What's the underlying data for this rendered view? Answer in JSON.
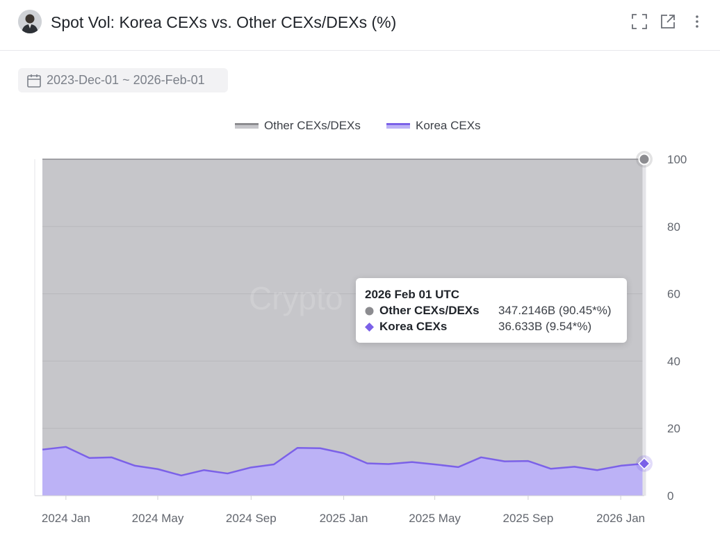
{
  "header": {
    "title": "Spot Vol: Korea CEXs vs. Other CEXs/DEXs (%)",
    "icons": [
      "avatar",
      "fullscreen-icon",
      "open-external-icon",
      "more-vertical-icon"
    ]
  },
  "date_range": {
    "label": "2023-Dec-01 ~ 2026-Feb-01",
    "icon": "calendar-icon"
  },
  "watermark": "Crypto",
  "legend": [
    {
      "name": "Other CEXs/DEXs",
      "color": "#8c8c90"
    },
    {
      "name": "Korea CEXs",
      "color": "#7b61e8"
    }
  ],
  "colors": {
    "other_fill": "#c6c6ca",
    "korea_fill": "#bcb2f6",
    "korea_line": "#7b61e8",
    "other_marker": "#8c8c90"
  },
  "tooltip": {
    "title": "2026 Feb 01 UTC",
    "rows": [
      {
        "name": "Other CEXs/DEXs",
        "value": "347.2146B (90.45*%)",
        "marker": "circle"
      },
      {
        "name": "Korea CEXs",
        "value": "36.633B (9.54*%)",
        "marker": "diamond"
      }
    ]
  },
  "chart_data": {
    "type": "area",
    "stacked": true,
    "percent": true,
    "x": [
      "2023-12-01",
      "2024-01-01",
      "2024-02-01",
      "2024-03-01",
      "2024-04-01",
      "2024-05-01",
      "2024-06-01",
      "2024-07-01",
      "2024-08-01",
      "2024-09-01",
      "2024-10-01",
      "2024-11-01",
      "2024-12-01",
      "2025-01-01",
      "2025-02-01",
      "2025-03-01",
      "2025-04-01",
      "2025-05-01",
      "2025-06-01",
      "2025-07-01",
      "2025-08-01",
      "2025-09-01",
      "2025-10-01",
      "2025-11-01",
      "2025-12-01",
      "2026-01-01",
      "2026-02-01"
    ],
    "series": [
      {
        "name": "Korea CEXs",
        "values": [
          13.7,
          14.5,
          11.2,
          11.4,
          8.9,
          7.9,
          6.0,
          7.6,
          6.6,
          8.4,
          9.3,
          14.2,
          14.1,
          12.6,
          9.6,
          9.4,
          10.0,
          9.3,
          8.5,
          11.4,
          10.2,
          10.3,
          8.0,
          8.6,
          7.6,
          8.9,
          9.54
        ]
      },
      {
        "name": "Other CEXs/DEXs",
        "values": [
          86.3,
          85.5,
          88.8,
          88.6,
          91.1,
          92.1,
          94.0,
          92.4,
          93.4,
          91.6,
          90.7,
          85.8,
          85.9,
          87.4,
          90.4,
          90.6,
          90.0,
          90.7,
          91.5,
          88.6,
          89.8,
          89.7,
          92.0,
          91.4,
          92.4,
          91.1,
          90.45
        ]
      }
    ],
    "xticks": [
      {
        "x": "2024-01-01",
        "label": "2024 Jan"
      },
      {
        "x": "2024-05-01",
        "label": "2024 May"
      },
      {
        "x": "2024-09-01",
        "label": "2024 Sep"
      },
      {
        "x": "2025-01-01",
        "label": "2025 Jan"
      },
      {
        "x": "2025-05-01",
        "label": "2025 May"
      },
      {
        "x": "2025-09-01",
        "label": "2025 Sep"
      },
      {
        "x": "2026-01-01",
        "label": "2026 Jan"
      }
    ],
    "yticks": [
      0,
      20,
      40,
      60,
      80,
      100
    ],
    "ylim": [
      0,
      100
    ],
    "yaxis_position": "right",
    "grid": true,
    "legend_position": "top-center",
    "title": "Spot Vol: Korea CEXs vs. Other CEXs/DEXs (%)"
  }
}
